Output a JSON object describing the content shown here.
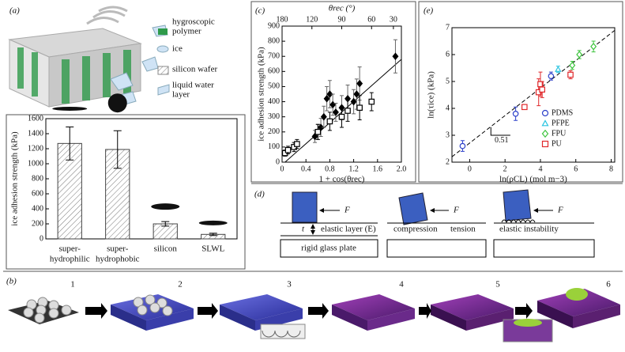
{
  "panel_labels": [
    "(a)",
    "(b)",
    "(c)",
    "(d)",
    "(e)"
  ],
  "legend_a": [
    [
      "hygroscopic",
      "polymer"
    ],
    [
      "ice"
    ],
    [
      "silicon wafer"
    ],
    [
      "liquid water",
      "layer"
    ]
  ],
  "chart_data": [
    {
      "type": "bar",
      "ylabel": "ice adhesion strength (kPa)",
      "categories": [
        [
          "super-",
          "hydrophilic"
        ],
        [
          "super-",
          "hydrophobic"
        ],
        [
          "silicon"
        ],
        [
          "SLWL"
        ]
      ],
      "values": [
        1270,
        1190,
        200,
        60
      ],
      "errors": [
        220,
        250,
        30,
        15
      ],
      "color": "#ffffff",
      "ylim": [
        0,
        1600
      ],
      "yticks": [
        0,
        200,
        400,
        600,
        800,
        1000,
        1200,
        1400,
        1600
      ]
    },
    {
      "type": "scatter",
      "xlabel": "1 + cos(θrec)",
      "ylabel": "ice adhesion strength (kPa)",
      "x2label": "θrec (°)",
      "xlim": [
        0,
        2
      ],
      "ylim": [
        0,
        900
      ],
      "xticks": [
        0,
        0.4,
        0.8,
        1.2,
        1.6,
        {
          "value": 2,
          "label": "2.0"
        }
      ],
      "yticks": [
        0,
        100,
        200,
        300,
        400,
        500,
        600,
        700,
        800,
        900
      ],
      "x2ticks": [
        180,
        120,
        90,
        60,
        30
      ],
      "series": [
        {
          "marker": "diamond",
          "color": "#000000",
          "filled": true,
          "x": [
            0.55,
            0.6,
            0.65,
            0.7,
            0.75,
            0.8,
            0.85,
            0.9,
            1.0,
            1.1,
            1.2,
            1.25,
            1.3,
            1.9
          ],
          "values": [
            170,
            200,
            230,
            300,
            420,
            450,
            380,
            330,
            360,
            420,
            400,
            450,
            520,
            700
          ],
          "errors": [
            40,
            50,
            60,
            70,
            80,
            90,
            70,
            60,
            80,
            90,
            80,
            100,
            110,
            110
          ]
        },
        {
          "marker": "square",
          "color": "#000000",
          "filled": false,
          "x": [
            0.05,
            0.1,
            0.2,
            0.25,
            0.6,
            0.8,
            1.0,
            1.1,
            1.3,
            1.5
          ],
          "values": [
            60,
            80,
            100,
            120,
            200,
            270,
            300,
            340,
            360,
            400
          ],
          "errors": [
            20,
            25,
            30,
            30,
            50,
            60,
            70,
            70,
            80,
            60
          ]
        }
      ],
      "fit_line": {
        "x": [
          0.05,
          2.0
        ],
        "values": [
          0,
          680
        ]
      }
    },
    {
      "type": "scatter",
      "xlabel": "ln(ρCL) (mol m−3)",
      "ylabel": "ln(τice) (kPa)",
      "xlim": [
        -1,
        8.2
      ],
      "ylim": [
        2,
        7
      ],
      "xticks": [
        0,
        2,
        4,
        6,
        8
      ],
      "yticks": [
        2,
        3,
        4,
        5,
        6,
        7
      ],
      "legend": "lower right",
      "series": [
        {
          "name": "PDMS",
          "marker": "circle",
          "color": "#2b3fc9",
          "filled": false,
          "x": [
            -0.4,
            2.6,
            4.6
          ],
          "values": [
            2.6,
            3.8,
            5.2
          ],
          "errors": [
            0.2,
            0.25,
            0.15
          ]
        },
        {
          "name": "PFPE",
          "marker": "triangle",
          "color": "#29c4e0",
          "filled": false,
          "x": [
            5.0
          ],
          "values": [
            5.45
          ],
          "errors": [
            0.12
          ]
        },
        {
          "name": "FPU",
          "marker": "diamond",
          "color": "#3cc43c",
          "filled": false,
          "x": [
            5.8,
            6.2,
            7.0
          ],
          "values": [
            5.6,
            6.0,
            6.3
          ],
          "errors": [
            0.15,
            0.15,
            0.2
          ]
        },
        {
          "name": "PU",
          "marker": "square",
          "color": "#e0282b",
          "filled": false,
          "x": [
            3.1,
            3.9,
            4.0,
            4.1,
            5.7
          ],
          "values": [
            4.05,
            4.6,
            4.9,
            4.7,
            5.25
          ],
          "errors": [
            0.08,
            0.5,
            0.45,
            0.3,
            0.15
          ]
        }
      ],
      "fit_line": {
        "x": [
          -1,
          8.2
        ],
        "values": [
          2.2,
          6.9
        ]
      },
      "annotation": "0.51"
    }
  ],
  "panel_d": {
    "force": "F",
    "thickness": "t",
    "elastic_layer": "elastic layer (E)",
    "glass": "rigid glass plate",
    "compression": "compression",
    "tension": "tension",
    "instability": "elastic instability"
  },
  "panel_b": {
    "steps": [
      "1",
      "2",
      "3",
      "4",
      "5",
      "6"
    ]
  }
}
